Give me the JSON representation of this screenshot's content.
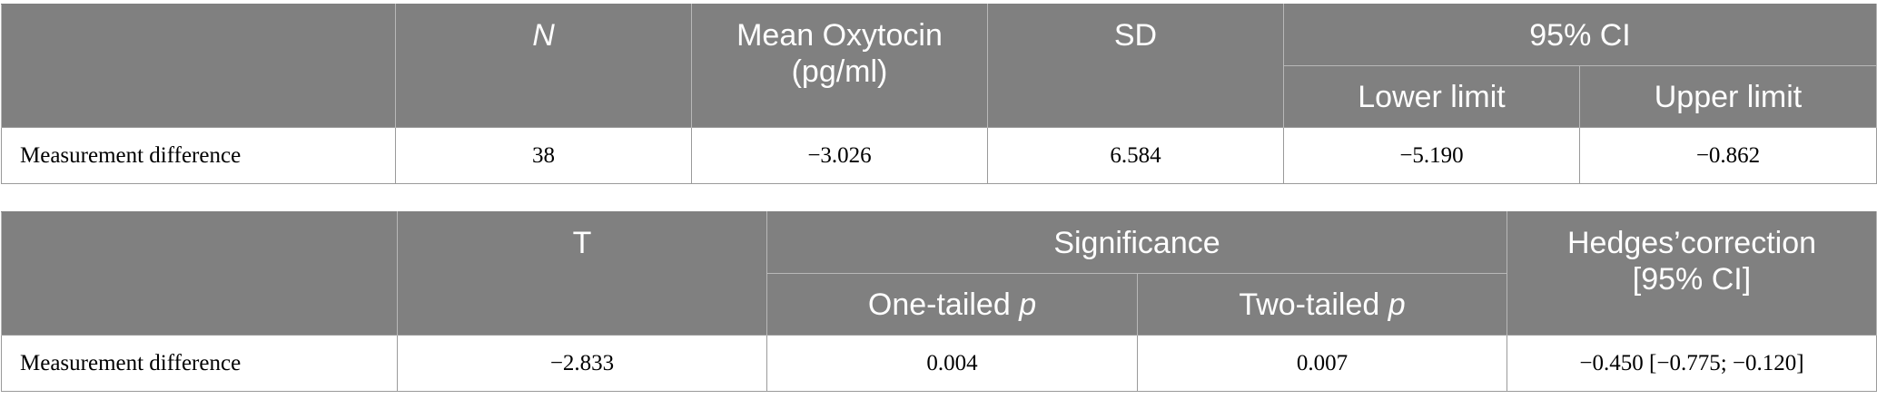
{
  "table_1": {
    "headers": {
      "n": "N",
      "mean_line1": "Mean Oxytocin",
      "mean_line2": "(pg/ml)",
      "sd": "SD",
      "ci": "95% CI",
      "lower": "Lower limit",
      "upper": "Upper limit"
    },
    "row": {
      "label": "Measurement difference",
      "n": "38",
      "mean": "−3.026",
      "sd": "6.584",
      "lower": "−5.190",
      "upper": "−0.862"
    }
  },
  "table_2": {
    "headers": {
      "t": "T",
      "significance": "Significance",
      "one_tailed": "One-tailed ",
      "two_tailed": "Two-tailed ",
      "p": "p",
      "hedges_line1": "Hedges’correction",
      "hedges_line2": "[95% CI]"
    },
    "row": {
      "label": "Measurement difference",
      "t": "−2.833",
      "one_tailed": "0.004",
      "two_tailed": "0.007",
      "hedges": "−0.450 [−0.775; −0.120]"
    }
  },
  "colors": {
    "header_bg": "#808080",
    "header_text": "#ffffff",
    "body_bg": "#ffffff",
    "body_text": "#000000"
  }
}
